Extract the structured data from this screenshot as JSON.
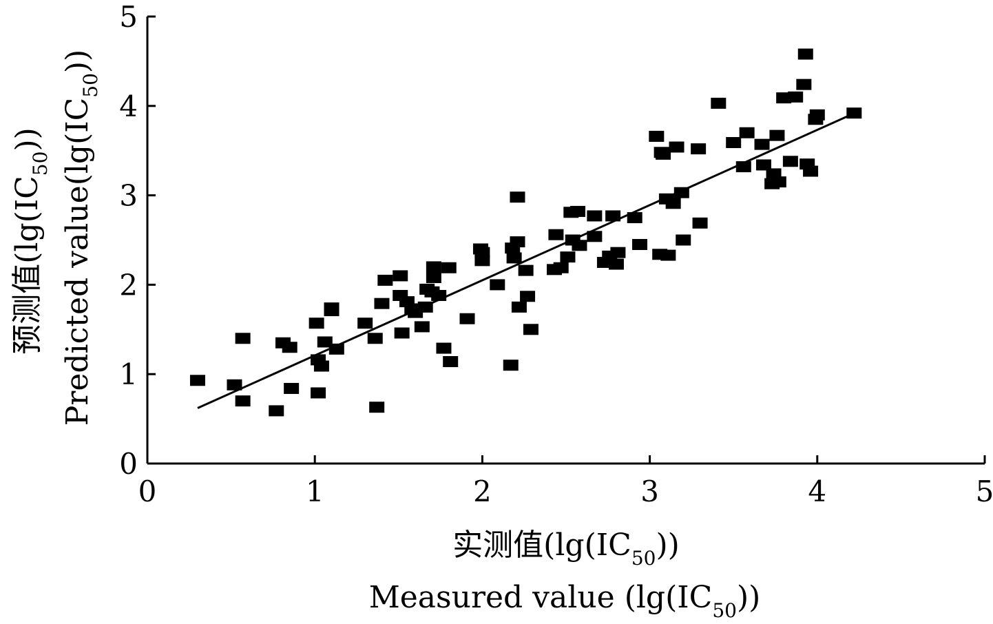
{
  "chart_data": {
    "type": "scatter",
    "xlim": [
      0,
      5
    ],
    "ylim": [
      0,
      5
    ],
    "xticks": [
      0,
      1,
      2,
      3,
      4,
      5
    ],
    "yticks": [
      0,
      1,
      2,
      3,
      4,
      5
    ],
    "xlabel_cn": "实测值(lg(IC",
    "xlabel_en": "Measured value (lg(IC",
    "ylabel_cn": "预测值(lg(IC",
    "ylabel_en": "Predicted value(lg(IC",
    "label_sub": "50",
    "label_close": "))",
    "grid": false,
    "legend": "none",
    "fit_line": {
      "x": [
        0.3,
        4.2
      ],
      "y": [
        0.62,
        3.9
      ]
    },
    "points": [
      [
        0.3,
        0.93
      ],
      [
        0.52,
        0.88
      ],
      [
        0.57,
        1.4
      ],
      [
        0.57,
        0.7
      ],
      [
        0.77,
        0.59
      ],
      [
        0.81,
        1.35
      ],
      [
        0.85,
        1.3
      ],
      [
        0.86,
        0.84
      ],
      [
        1.01,
        1.57
      ],
      [
        1.02,
        0.79
      ],
      [
        1.02,
        1.16
      ],
      [
        1.04,
        1.09
      ],
      [
        1.06,
        1.36
      ],
      [
        1.1,
        1.71
      ],
      [
        1.1,
        1.74
      ],
      [
        1.13,
        1.28
      ],
      [
        1.3,
        1.57
      ],
      [
        1.36,
        1.4
      ],
      [
        1.37,
        0.63
      ],
      [
        1.4,
        1.79
      ],
      [
        1.42,
        2.05
      ],
      [
        1.51,
        2.1
      ],
      [
        1.51,
        1.88
      ],
      [
        1.52,
        1.46
      ],
      [
        1.55,
        1.81
      ],
      [
        1.58,
        1.73
      ],
      [
        1.6,
        1.69
      ],
      [
        1.64,
        1.53
      ],
      [
        1.66,
        1.75
      ],
      [
        1.67,
        1.95
      ],
      [
        1.7,
        1.92
      ],
      [
        1.71,
        2.08
      ],
      [
        1.71,
        2.2
      ],
      [
        1.74,
        1.88
      ],
      [
        1.77,
        1.29
      ],
      [
        1.8,
        2.19
      ],
      [
        1.81,
        1.14
      ],
      [
        1.91,
        1.62
      ],
      [
        1.99,
        2.4
      ],
      [
        2.0,
        2.36
      ],
      [
        2.0,
        2.27
      ],
      [
        2.09,
        2.0
      ],
      [
        2.17,
        1.1
      ],
      [
        2.18,
        2.41
      ],
      [
        2.19,
        2.3
      ],
      [
        2.21,
        2.98
      ],
      [
        2.21,
        2.48
      ],
      [
        2.22,
        1.75
      ],
      [
        2.26,
        2.16
      ],
      [
        2.27,
        1.87
      ],
      [
        2.29,
        1.5
      ],
      [
        2.43,
        2.17
      ],
      [
        2.44,
        2.56
      ],
      [
        2.47,
        2.19
      ],
      [
        2.51,
        2.31
      ],
      [
        2.53,
        2.81
      ],
      [
        2.54,
        2.5
      ],
      [
        2.57,
        2.82
      ],
      [
        2.58,
        2.44
      ],
      [
        2.67,
        2.77
      ],
      [
        2.67,
        2.54
      ],
      [
        2.73,
        2.25
      ],
      [
        2.76,
        2.32
      ],
      [
        2.78,
        2.77
      ],
      [
        2.8,
        2.23
      ],
      [
        2.81,
        2.36
      ],
      [
        2.91,
        2.75
      ],
      [
        2.94,
        2.45
      ],
      [
        3.04,
        3.66
      ],
      [
        3.06,
        2.34
      ],
      [
        3.07,
        3.48
      ],
      [
        3.08,
        3.46
      ],
      [
        3.1,
        2.96
      ],
      [
        3.11,
        2.33
      ],
      [
        3.14,
        2.91
      ],
      [
        3.16,
        3.54
      ],
      [
        3.19,
        3.03
      ],
      [
        3.2,
        2.5
      ],
      [
        3.29,
        3.52
      ],
      [
        3.3,
        2.69
      ],
      [
        3.41,
        4.03
      ],
      [
        3.5,
        3.59
      ],
      [
        3.56,
        3.32
      ],
      [
        3.58,
        3.7
      ],
      [
        3.67,
        3.57
      ],
      [
        3.68,
        3.34
      ],
      [
        3.73,
        3.13
      ],
      [
        3.74,
        3.24
      ],
      [
        3.76,
        3.67
      ],
      [
        3.77,
        3.15
      ],
      [
        3.8,
        4.09
      ],
      [
        3.84,
        3.38
      ],
      [
        3.87,
        4.1
      ],
      [
        3.92,
        4.24
      ],
      [
        3.93,
        4.58
      ],
      [
        3.94,
        3.35
      ],
      [
        3.96,
        3.27
      ],
      [
        3.99,
        3.85
      ],
      [
        4.0,
        3.9
      ],
      [
        4.22,
        3.92
      ]
    ]
  }
}
